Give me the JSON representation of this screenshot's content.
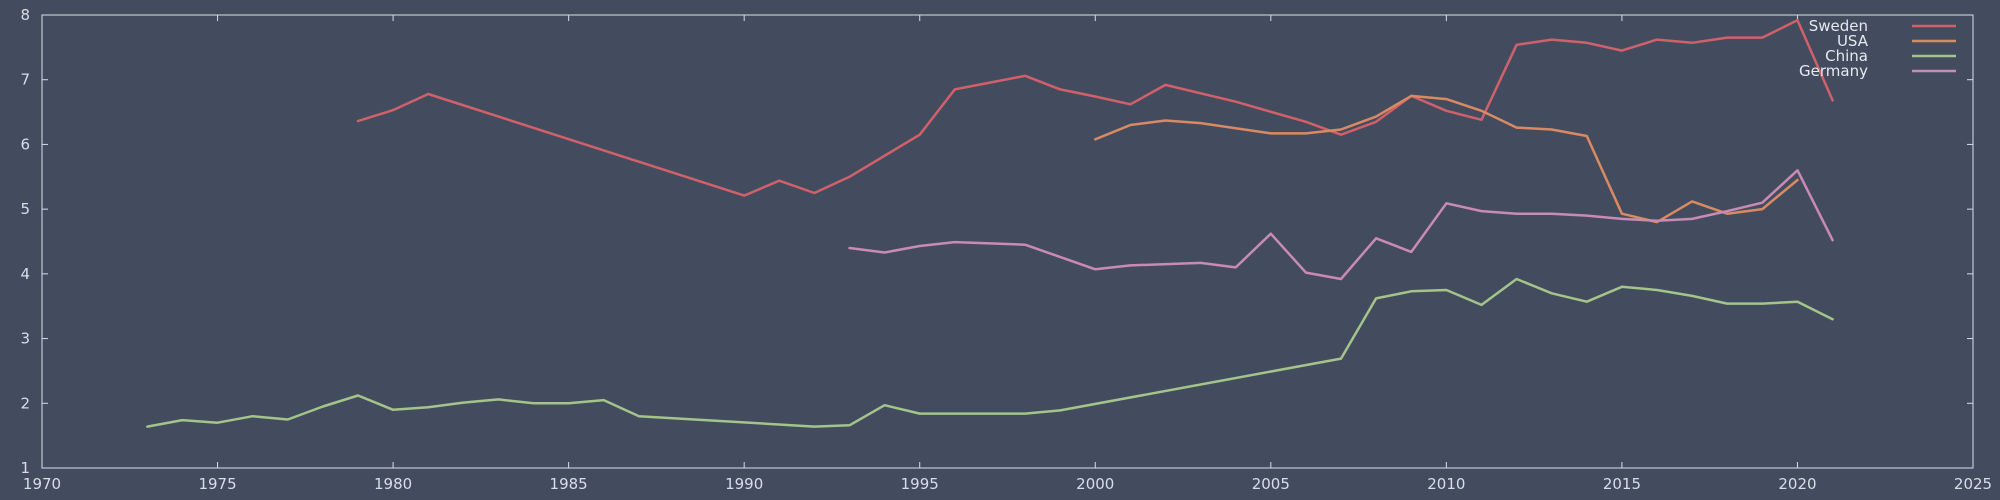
{
  "chart_data": {
    "type": "line",
    "title": "",
    "xlabel": "",
    "ylabel": "",
    "xlim": [
      1970,
      2025
    ],
    "ylim": [
      1,
      8
    ],
    "x_ticks": [
      1970,
      1975,
      1980,
      1985,
      1990,
      1995,
      2000,
      2005,
      2010,
      2015,
      2020,
      2025
    ],
    "y_ticks": [
      1,
      2,
      3,
      4,
      5,
      6,
      7,
      8
    ],
    "grid": false,
    "legend_position": "top-right",
    "background_color": "#434c5e",
    "axis_color": "#d8dee9",
    "series": [
      {
        "name": "Sweden",
        "color": "#d0606a",
        "points": [
          [
            1979,
            6.36
          ],
          [
            1980,
            6.53
          ],
          [
            1981,
            6.78
          ],
          [
            1990,
            5.21
          ],
          [
            1991,
            5.44
          ],
          [
            1992,
            5.25
          ],
          [
            1993,
            5.5
          ],
          [
            1995,
            6.15
          ],
          [
            1996,
            6.85
          ],
          [
            1998,
            7.06
          ],
          [
            1999,
            6.85
          ],
          [
            2000,
            6.74
          ],
          [
            2001,
            6.62
          ],
          [
            2002,
            6.92
          ],
          [
            2004,
            6.66
          ],
          [
            2006,
            6.35
          ],
          [
            2007,
            6.15
          ],
          [
            2008,
            6.35
          ],
          [
            2009,
            6.75
          ],
          [
            2010,
            6.52
          ],
          [
            2011,
            6.38
          ],
          [
            2012,
            7.54
          ],
          [
            2013,
            7.62
          ],
          [
            2014,
            7.57
          ],
          [
            2015,
            7.45
          ],
          [
            2016,
            7.62
          ],
          [
            2017,
            7.57
          ],
          [
            2018,
            7.65
          ],
          [
            2019,
            7.65
          ],
          [
            2020,
            7.92
          ],
          [
            2021,
            6.68
          ]
        ]
      },
      {
        "name": "USA",
        "color": "#d98a62",
        "points": [
          [
            2000,
            6.08
          ],
          [
            2001,
            6.3
          ],
          [
            2002,
            6.37
          ],
          [
            2003,
            6.33
          ],
          [
            2005,
            6.17
          ],
          [
            2006,
            6.17
          ],
          [
            2007,
            6.23
          ],
          [
            2008,
            6.43
          ],
          [
            2009,
            6.75
          ],
          [
            2010,
            6.7
          ],
          [
            2011,
            6.52
          ],
          [
            2012,
            6.26
          ],
          [
            2013,
            6.23
          ],
          [
            2014,
            6.13
          ],
          [
            2015,
            4.93
          ],
          [
            2016,
            4.8
          ],
          [
            2017,
            5.12
          ],
          [
            2018,
            4.93
          ],
          [
            2019,
            5.0
          ],
          [
            2020,
            5.45
          ]
        ]
      },
      {
        "name": "China",
        "color": "#a3c48a",
        "points": [
          [
            1973,
            1.64
          ],
          [
            1974,
            1.74
          ],
          [
            1975,
            1.7
          ],
          [
            1976,
            1.8
          ],
          [
            1977,
            1.75
          ],
          [
            1978,
            1.95
          ],
          [
            1979,
            2.12
          ],
          [
            1980,
            1.9
          ],
          [
            1981,
            1.94
          ],
          [
            1982,
            2.01
          ],
          [
            1983,
            2.06
          ],
          [
            1984,
            2.0
          ],
          [
            1985,
            2.0
          ],
          [
            1986,
            2.05
          ],
          [
            1987,
            1.8
          ],
          [
            1992,
            1.64
          ],
          [
            1993,
            1.66
          ],
          [
            1994,
            1.97
          ],
          [
            1995,
            1.84
          ],
          [
            1998,
            1.84
          ],
          [
            1999,
            1.89
          ],
          [
            2007,
            2.69
          ],
          [
            2008,
            3.62
          ],
          [
            2009,
            3.73
          ],
          [
            2010,
            3.75
          ],
          [
            2011,
            3.52
          ],
          [
            2012,
            3.92
          ],
          [
            2013,
            3.7
          ],
          [
            2014,
            3.57
          ],
          [
            2015,
            3.8
          ],
          [
            2016,
            3.75
          ],
          [
            2017,
            3.66
          ],
          [
            2018,
            3.54
          ],
          [
            2019,
            3.54
          ],
          [
            2020,
            3.57
          ],
          [
            2021,
            3.3
          ]
        ]
      },
      {
        "name": "Germany",
        "color": "#c98ab4",
        "points": [
          [
            1993,
            4.4
          ],
          [
            1994,
            4.33
          ],
          [
            1995,
            4.43
          ],
          [
            1996,
            4.49
          ],
          [
            1997,
            4.47
          ],
          [
            1998,
            4.45
          ],
          [
            2000,
            4.07
          ],
          [
            2001,
            4.13
          ],
          [
            2003,
            4.17
          ],
          [
            2004,
            4.1
          ],
          [
            2005,
            4.62
          ],
          [
            2006,
            4.02
          ],
          [
            2007,
            3.92
          ],
          [
            2008,
            4.55
          ],
          [
            2009,
            4.34
          ],
          [
            2010,
            5.09
          ],
          [
            2011,
            4.97
          ],
          [
            2012,
            4.93
          ],
          [
            2013,
            4.93
          ],
          [
            2014,
            4.9
          ],
          [
            2015,
            4.85
          ],
          [
            2016,
            4.82
          ],
          [
            2017,
            4.85
          ],
          [
            2018,
            4.97
          ],
          [
            2019,
            5.1
          ],
          [
            2020,
            5.6
          ],
          [
            2021,
            4.52
          ]
        ]
      }
    ]
  }
}
